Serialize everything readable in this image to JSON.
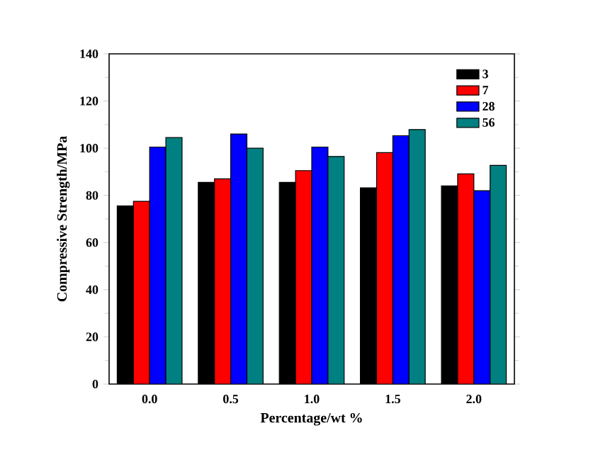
{
  "chart_data": {
    "type": "bar",
    "xlabel": "Percentage/wt %",
    "ylabel": "Compressive Strength/MPa",
    "categories": [
      "0.0",
      "0.5",
      "1.0",
      "1.5",
      "2.0"
    ],
    "series": [
      {
        "name": "3",
        "color": "#000000",
        "values": [
          75.5,
          85.5,
          85.5,
          83.2,
          84
        ]
      },
      {
        "name": "7",
        "color": "#ff0000",
        "values": [
          77.5,
          87,
          90.5,
          98.1,
          89.1
        ]
      },
      {
        "name": "28",
        "color": "#0000ff",
        "values": [
          100.5,
          106,
          100.5,
          105.3,
          82
        ]
      },
      {
        "name": "56",
        "color": "#008080",
        "values": [
          104.5,
          100,
          96.5,
          107.9,
          92.7
        ]
      }
    ],
    "ylim": [
      0,
      140
    ],
    "yticks": [
      0,
      20,
      40,
      60,
      80,
      100,
      120,
      140
    ],
    "grid": false,
    "legend": "top right"
  }
}
